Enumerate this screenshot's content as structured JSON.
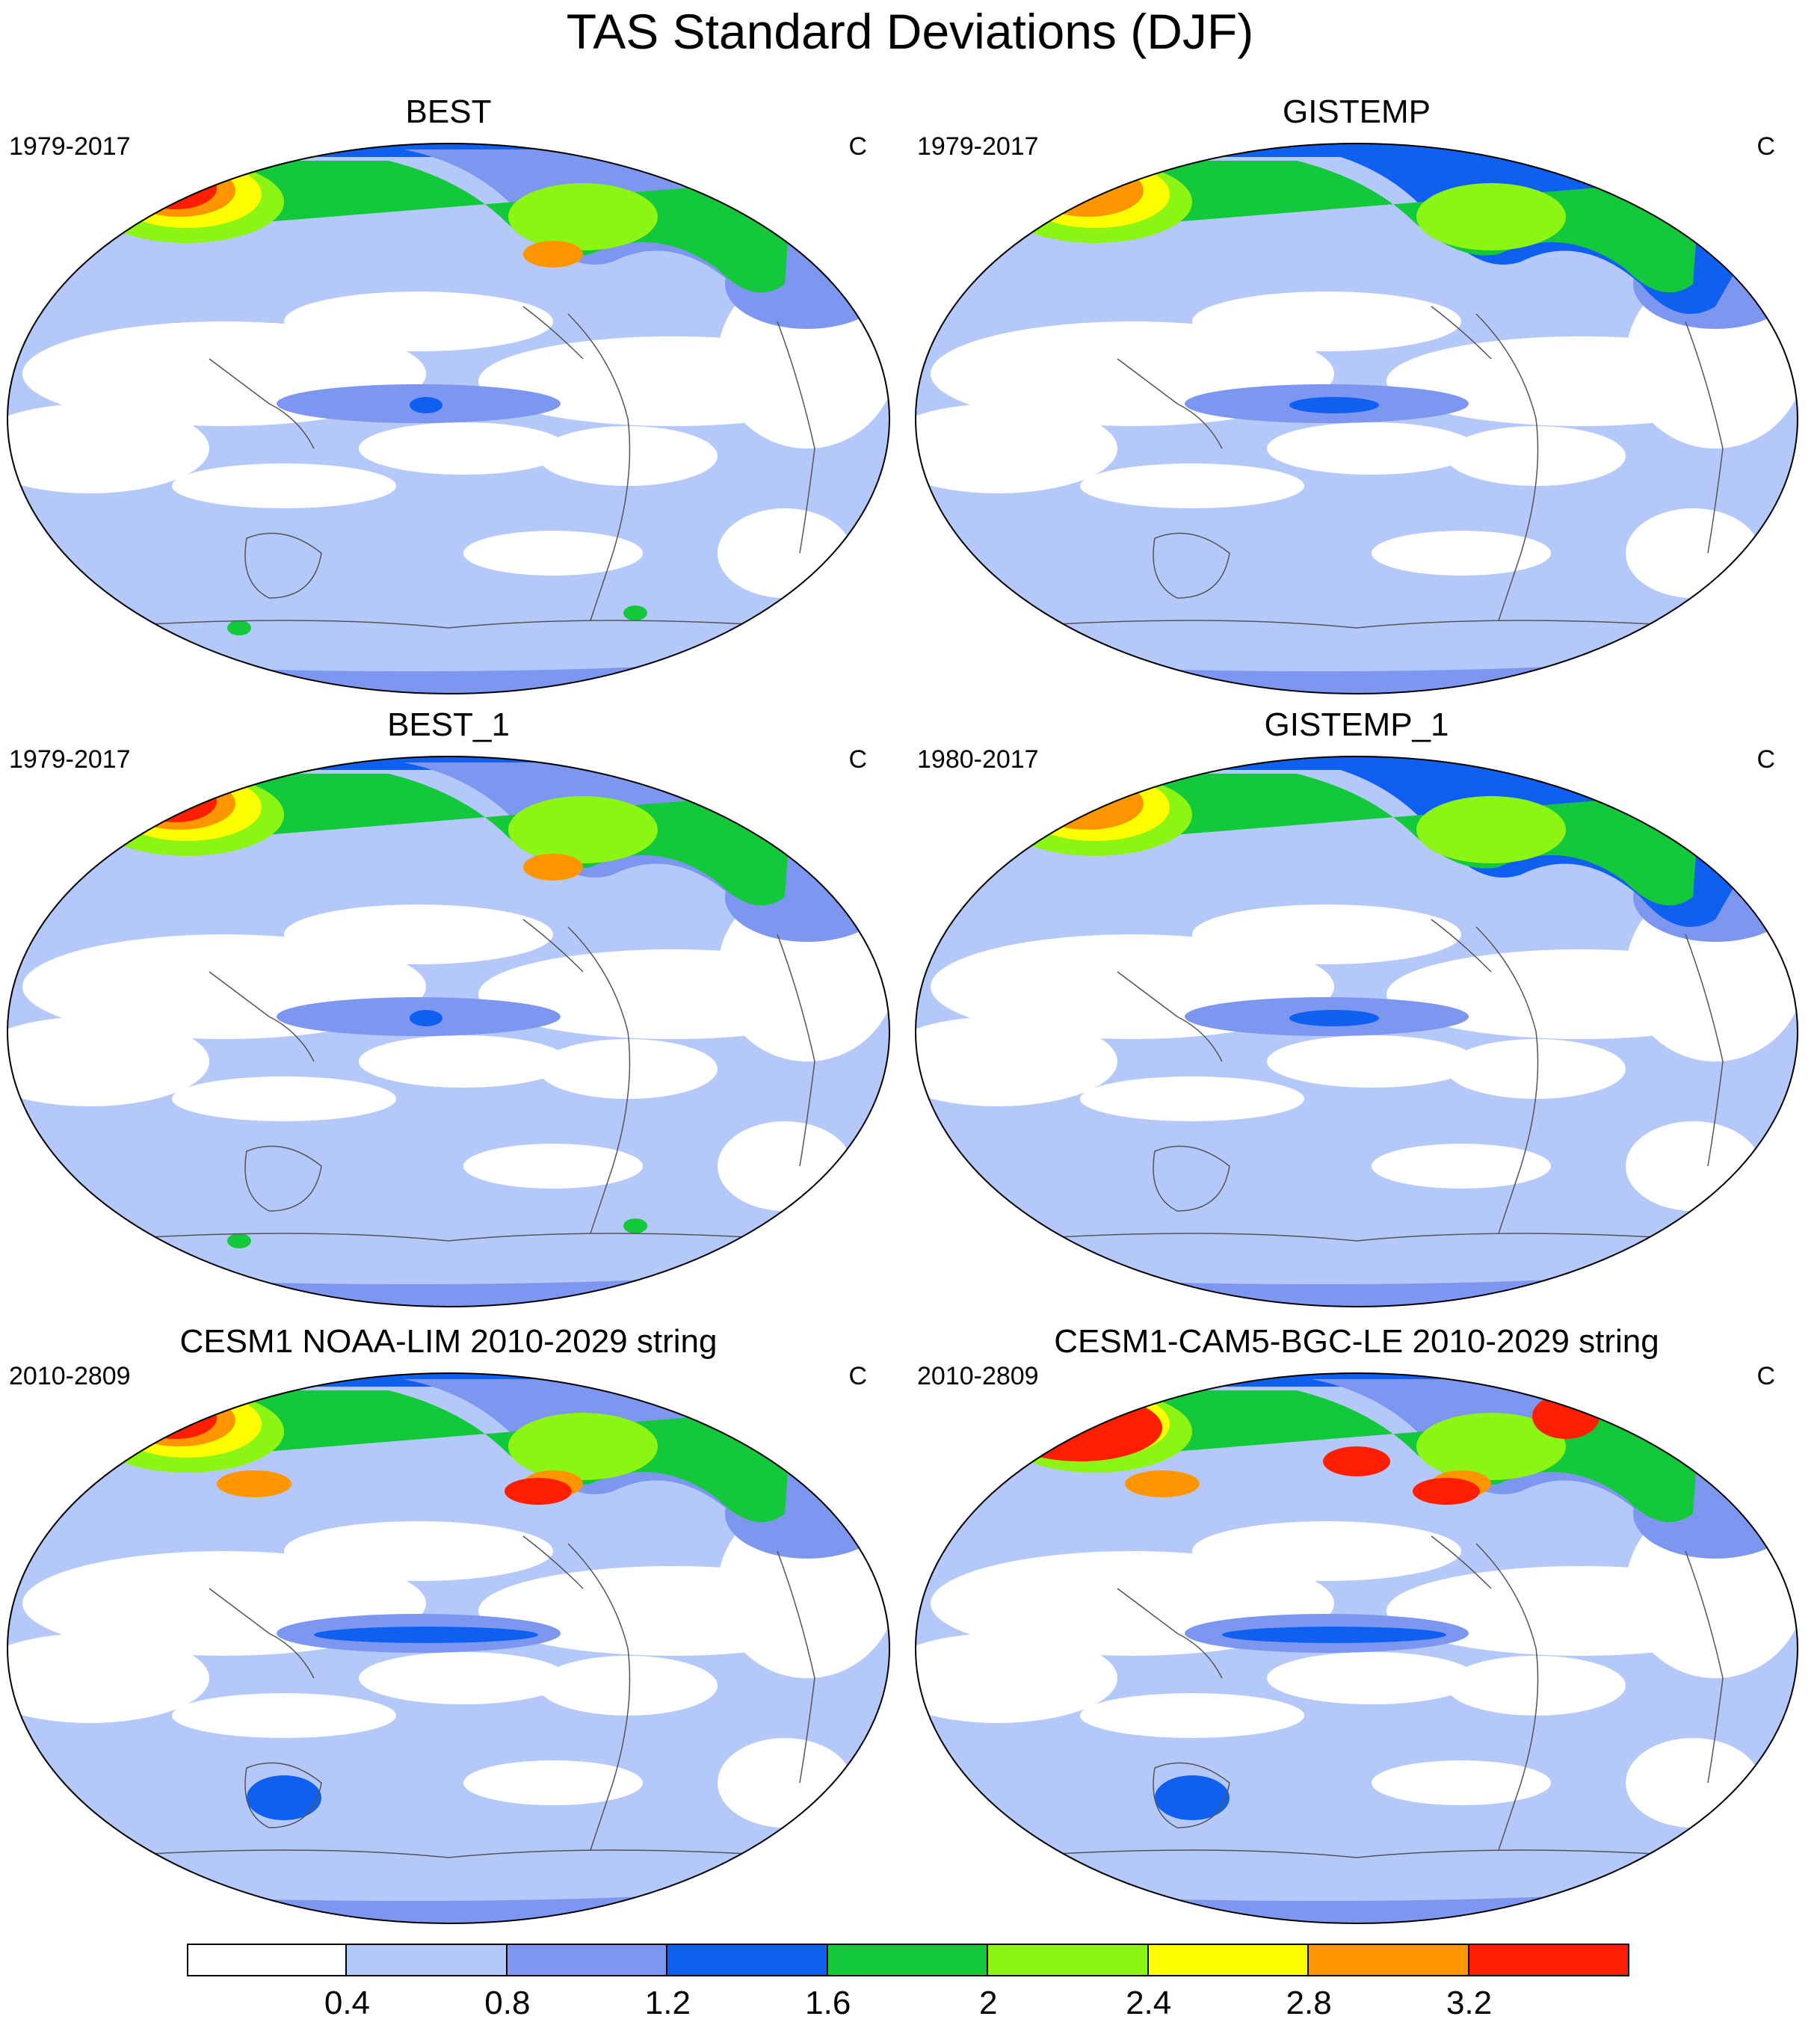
{
  "title": "TAS Standard Deviations (DJF)",
  "panels": [
    {
      "title": "BEST",
      "period": "1979-2017",
      "units": "C",
      "variant": "obs_best"
    },
    {
      "title": "GISTEMP",
      "period": "1979-2017",
      "units": "C",
      "variant": "obs_gis"
    },
    {
      "title": "BEST_1",
      "period": "1979-2017",
      "units": "C",
      "variant": "obs_best"
    },
    {
      "title": "GISTEMP_1",
      "period": "1980-2017",
      "units": "C",
      "variant": "obs_gis"
    },
    {
      "title": "CESM1 NOAA-LIM 2010-2029 string",
      "period": "2010-2809",
      "units": "C",
      "variant": "model_lim"
    },
    {
      "title": "CESM1-CAM5-BGC-LE 2010-2029 string",
      "period": "2010-2809",
      "units": "C",
      "variant": "model_le"
    }
  ],
  "colorbar": {
    "labels": [
      "0.4",
      "0.8",
      "1.2",
      "1.6",
      "2",
      "2.4",
      "2.8",
      "3.2"
    ],
    "colors": [
      "#ffffff",
      "#b4c8fa",
      "#7d96f0",
      "#0f5ff0",
      "#14c83c",
      "#8cf514",
      "#ffff00",
      "#ff9600",
      "#ff1e00"
    ]
  }
}
